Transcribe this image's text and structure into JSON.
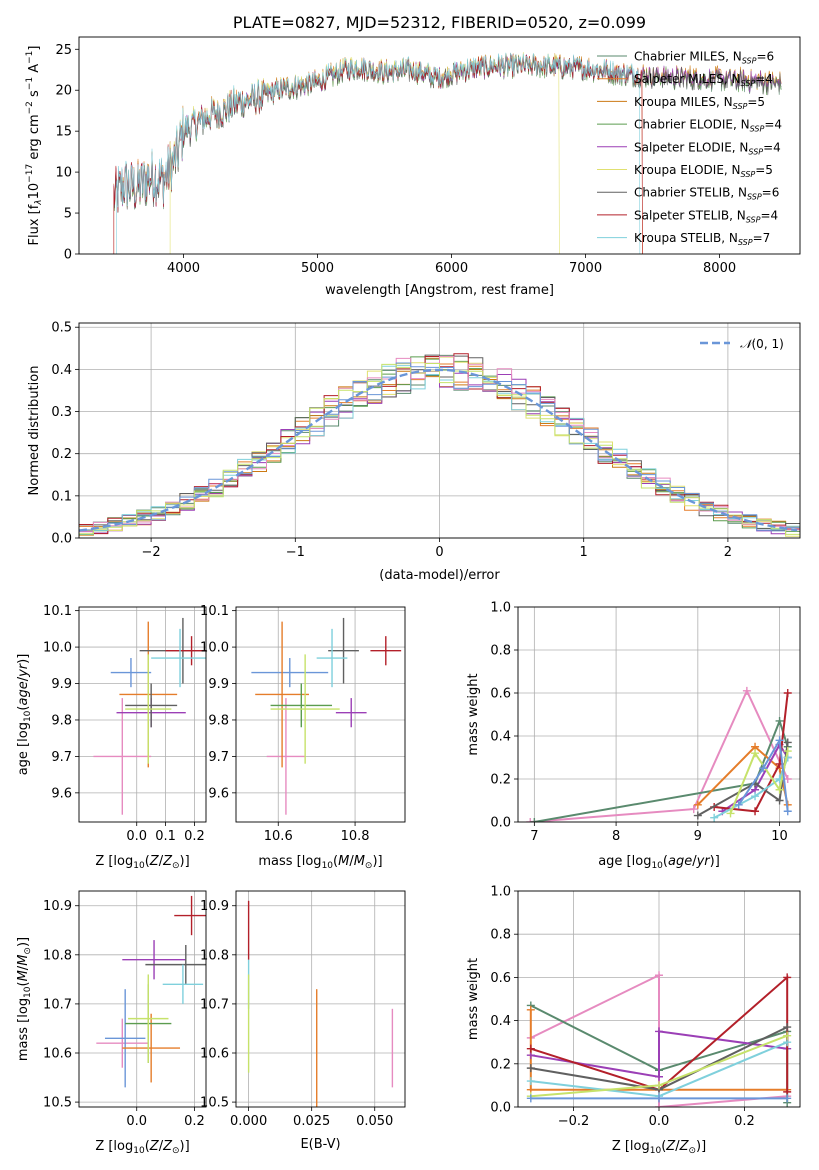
{
  "colors": {
    "c0": "#5a8a6e",
    "c1": "#e57d2a",
    "c2": "#cc7a14",
    "c3": "#5b9c4f",
    "c4": "#9b3fb6",
    "c5": "#e0e070",
    "c6": "#606060",
    "c7": "#b3202a",
    "c8": "#7fd0dc",
    "c9": "#e68bc0",
    "c10": "#6a96d8",
    "c11": "#c6e26a",
    "c12": "#d05a6a",
    "c13": "#6a6ac8"
  },
  "chart_data": [
    {
      "id": "spectrum",
      "type": "line",
      "title": "PLATE=0827, MJD=52312, FIBERID=0520, z=0.099",
      "xlabel": "wavelength [Angstrom, rest frame]",
      "ylabel": "Flux [fλ10⁻¹⁷ erg cm⁻² s⁻¹ A⁻¹]",
      "xlim": [
        3220,
        8600
      ],
      "ylim": [
        0,
        26.5
      ],
      "xticks": [
        4000,
        5000,
        6000,
        7000,
        8000
      ],
      "yticks": [
        0,
        5,
        10,
        15,
        20,
        25
      ],
      "grid": false,
      "legend_position": "top-right",
      "series": [
        {
          "name": "Chabrier MILES, N_SSP=6",
          "color_key": "c0"
        },
        {
          "name": "Salpeter MILES, N_SSP=4",
          "color_key": "c1"
        },
        {
          "name": "Kroupa MILES, N_SSP=5",
          "color_key": "c2"
        },
        {
          "name": "Chabrier ELODIE, N_SSP=4",
          "color_key": "c3"
        },
        {
          "name": "Salpeter ELODIE, N_SSP=4",
          "color_key": "c4"
        },
        {
          "name": "Kroupa ELODIE, N_SSP=5",
          "color_key": "c5"
        },
        {
          "name": "Chabrier STELIB, N_SSP=6",
          "color_key": "c6"
        },
        {
          "name": "Salpeter STELIB, N_SSP=4",
          "color_key": "c7"
        },
        {
          "name": "Kroupa STELIB, N_SSP=7",
          "color_key": "c8"
        }
      ],
      "continuum": [
        [
          3480,
          7.0
        ],
        [
          3560,
          8.5
        ],
        [
          3650,
          8.0
        ],
        [
          3750,
          9.5
        ],
        [
          3850,
          9.0
        ],
        [
          3950,
          12.0
        ],
        [
          4000,
          15.0
        ],
        [
          4100,
          16.0
        ],
        [
          4200,
          17.0
        ],
        [
          4300,
          17.5
        ],
        [
          4400,
          18.5
        ],
        [
          4500,
          18.8
        ],
        [
          4700,
          20.0
        ],
        [
          4860,
          20.5
        ],
        [
          5000,
          21.0
        ],
        [
          5200,
          22.5
        ],
        [
          5300,
          22.8
        ],
        [
          5500,
          22.2
        ],
        [
          5700,
          22.5
        ],
        [
          5900,
          21.5
        ],
        [
          6100,
          22.5
        ],
        [
          6300,
          23.0
        ],
        [
          6500,
          23.0
        ],
        [
          6700,
          23.0
        ],
        [
          6900,
          22.8
        ],
        [
          7100,
          22.5
        ],
        [
          7300,
          22.0
        ],
        [
          7500,
          21.8
        ],
        [
          7800,
          21.5
        ],
        [
          8100,
          21.3
        ],
        [
          8460,
          21.0
        ]
      ],
      "dropouts": [
        {
          "series": "Salpeter MILES, N_SSP=4",
          "low_end": 3480,
          "high_end": 7420
        },
        {
          "series": "Kroupa ELODIE, N_SSP=5",
          "low_end": 3900,
          "high_end": 6800
        },
        {
          "series": "Salpeter STELIB, N_SSP=4",
          "low_end": 3480,
          "high_end": 7420
        },
        {
          "series": "Kroupa STELIB, N_SSP=7",
          "low_end": 3500,
          "high_end": 7400
        }
      ]
    },
    {
      "id": "residuals",
      "type": "histogram",
      "xlabel": "(data-model)/error",
      "ylabel": "Normed distribution",
      "xlim": [
        -2.5,
        2.5
      ],
      "ylim": [
        0,
        0.51
      ],
      "xticks": [
        -2,
        -1,
        0,
        1,
        2
      ],
      "yticks": [
        0.0,
        0.1,
        0.2,
        0.3,
        0.4,
        0.5
      ],
      "grid": true,
      "legend_position": "top-right",
      "reference": {
        "name": "𝒩(0,1)",
        "mean": 0,
        "sigma": 1,
        "color_key": "c10",
        "style": "dashed"
      },
      "bin_width": 0.1
    },
    {
      "id": "age_vs_Z",
      "type": "scatter-errorbar",
      "xlabel": "Z [log₁₀(Z/Z⊙)]",
      "ylabel": "age  [log₁₀(age/yr)]",
      "xlim": [
        -0.2,
        0.24
      ],
      "ylim": [
        9.52,
        10.11
      ],
      "xticks": [
        0.0,
        0.1,
        0.2
      ],
      "yticks": [
        9.6,
        9.7,
        9.8,
        9.9,
        10.0,
        10.1
      ],
      "grid": true,
      "points": [
        {
          "x": -0.05,
          "y": 9.7,
          "xerr": 0.1,
          "yerr": 0.16,
          "color_key": "c9"
        },
        {
          "x": -0.02,
          "y": 9.93,
          "xerr": 0.07,
          "yerr": 0.04,
          "color_key": "c10"
        },
        {
          "x": 0.04,
          "y": 9.87,
          "xerr": 0.1,
          "yerr": 0.2,
          "color_key": "c1"
        },
        {
          "x": 0.05,
          "y": 9.82,
          "xerr": 0.12,
          "yerr": 0.04,
          "color_key": "c4"
        },
        {
          "x": 0.05,
          "y": 9.84,
          "xerr": 0.09,
          "yerr": 0.06,
          "color_key": "c6"
        },
        {
          "x": 0.04,
          "y": 9.83,
          "xerr": 0.08,
          "yerr": 0.15,
          "color_key": "c11"
        },
        {
          "x": 0.16,
          "y": 9.99,
          "xerr": 0.15,
          "yerr": 0.09,
          "color_key": "c6"
        },
        {
          "x": 0.19,
          "y": 9.99,
          "xerr": 0.09,
          "yerr": 0.04,
          "color_key": "c7"
        },
        {
          "x": 0.15,
          "y": 9.97,
          "xerr": 0.1,
          "yerr": 0.08,
          "color_key": "c8"
        }
      ]
    },
    {
      "id": "age_vs_mass",
      "type": "scatter-errorbar",
      "xlabel": "mass [log₁₀(M/M⊙)]",
      "ylabel": "",
      "xlim": [
        10.49,
        10.93
      ],
      "ylim": [
        9.52,
        10.11
      ],
      "xticks": [
        10.6,
        10.8
      ],
      "yticks": [
        9.6,
        9.7,
        9.8,
        9.9,
        10.0,
        10.1
      ],
      "grid": true,
      "points": [
        {
          "x": 10.62,
          "y": 9.7,
          "xerr": 0.05,
          "yerr": 0.16,
          "color_key": "c9"
        },
        {
          "x": 10.63,
          "y": 9.93,
          "xerr": 0.1,
          "yerr": 0.04,
          "color_key": "c10"
        },
        {
          "x": 10.61,
          "y": 9.87,
          "xerr": 0.07,
          "yerr": 0.2,
          "color_key": "c1"
        },
        {
          "x": 10.79,
          "y": 9.82,
          "xerr": 0.04,
          "yerr": 0.04,
          "color_key": "c4"
        },
        {
          "x": 10.66,
          "y": 9.84,
          "xerr": 0.08,
          "yerr": 0.06,
          "color_key": "c3"
        },
        {
          "x": 10.67,
          "y": 9.83,
          "xerr": 0.09,
          "yerr": 0.15,
          "color_key": "c11"
        },
        {
          "x": 10.77,
          "y": 9.99,
          "xerr": 0.04,
          "yerr": 0.09,
          "color_key": "c6"
        },
        {
          "x": 10.88,
          "y": 9.99,
          "xerr": 0.04,
          "yerr": 0.04,
          "color_key": "c7"
        },
        {
          "x": 10.74,
          "y": 9.97,
          "xerr": 0.04,
          "yerr": 0.08,
          "color_key": "c8"
        }
      ]
    },
    {
      "id": "weight_vs_age",
      "type": "line",
      "xlabel": "age  [log₁₀(age/yr)]",
      "ylabel": "mass weight",
      "xlim": [
        6.8,
        10.25
      ],
      "ylim": [
        0,
        1.0
      ],
      "xticks": [
        7,
        8,
        9,
        10
      ],
      "yticks": [
        0.0,
        0.2,
        0.4,
        0.6,
        0.8,
        1.0
      ],
      "grid": true,
      "series": [
        {
          "color_key": "c9",
          "points": [
            [
              6.95,
              0.0
            ],
            [
              8.95,
              0.06
            ],
            [
              9.6,
              0.61
            ],
            [
              10.1,
              0.2
            ]
          ]
        },
        {
          "color_key": "c0",
          "points": [
            [
              7.0,
              0.0
            ],
            [
              9.7,
              0.18
            ],
            [
              10.0,
              0.47
            ],
            [
              10.1,
              0.35
            ]
          ]
        },
        {
          "color_key": "c1",
          "points": [
            [
              9.0,
              0.08
            ],
            [
              9.7,
              0.35
            ],
            [
              10.0,
              0.25
            ],
            [
              10.1,
              0.08
            ]
          ]
        },
        {
          "color_key": "c4",
          "points": [
            [
              9.3,
              0.05
            ],
            [
              9.7,
              0.15
            ],
            [
              10.0,
              0.36
            ],
            [
              10.1,
              0.3
            ]
          ]
        },
        {
          "color_key": "c7",
          "points": [
            [
              9.2,
              0.07
            ],
            [
              9.7,
              0.05
            ],
            [
              10.0,
              0.27
            ],
            [
              10.1,
              0.6
            ]
          ]
        },
        {
          "color_key": "c6",
          "points": [
            [
              9.0,
              0.03
            ],
            [
              9.7,
              0.18
            ],
            [
              10.0,
              0.1
            ],
            [
              10.1,
              0.37
            ]
          ]
        },
        {
          "color_key": "c8",
          "points": [
            [
              9.2,
              0.02
            ],
            [
              9.7,
              0.12
            ],
            [
              10.0,
              0.2
            ],
            [
              10.1,
              0.3
            ]
          ]
        },
        {
          "color_key": "c11",
          "points": [
            [
              9.4,
              0.04
            ],
            [
              9.7,
              0.32
            ],
            [
              10.0,
              0.15
            ],
            [
              10.1,
              0.33
            ]
          ]
        },
        {
          "color_key": "c10",
          "points": [
            [
              9.5,
              0.08
            ],
            [
              9.8,
              0.25
            ],
            [
              10.0,
              0.38
            ],
            [
              10.1,
              0.05
            ]
          ]
        }
      ]
    },
    {
      "id": "mass_vs_Z",
      "type": "scatter-errorbar",
      "xlabel": "Z [log₁₀(Z/Z⊙)]",
      "ylabel": "mass [log₁₀(M/M⊙)]",
      "xlim": [
        -0.2,
        0.24
      ],
      "ylim": [
        10.49,
        10.93
      ],
      "xticks": [
        0.0,
        0.2
      ],
      "yticks": [
        10.5,
        10.6,
        10.7,
        10.8,
        10.9
      ],
      "grid": true,
      "points": [
        {
          "x": -0.05,
          "y": 10.62,
          "xerr": 0.09,
          "yerr": 0.05,
          "color_key": "c9"
        },
        {
          "x": -0.04,
          "y": 10.63,
          "xerr": 0.07,
          "yerr": 0.1,
          "color_key": "c10"
        },
        {
          "x": 0.05,
          "y": 10.61,
          "xerr": 0.1,
          "yerr": 0.07,
          "color_key": "c1"
        },
        {
          "x": 0.06,
          "y": 10.79,
          "xerr": 0.11,
          "yerr": 0.04,
          "color_key": "c4"
        },
        {
          "x": 0.04,
          "y": 10.66,
          "xerr": 0.08,
          "yerr": 0.08,
          "color_key": "c3"
        },
        {
          "x": 0.04,
          "y": 10.67,
          "xerr": 0.07,
          "yerr": 0.09,
          "color_key": "c11"
        },
        {
          "x": 0.17,
          "y": 10.78,
          "xerr": 0.14,
          "yerr": 0.04,
          "color_key": "c6"
        },
        {
          "x": 0.19,
          "y": 10.88,
          "xerr": 0.06,
          "yerr": 0.04,
          "color_key": "c7"
        },
        {
          "x": 0.16,
          "y": 10.74,
          "xerr": 0.07,
          "yerr": 0.04,
          "color_key": "c8"
        }
      ]
    },
    {
      "id": "mass_vs_ebv",
      "type": "scatter-errorbar",
      "xlabel": "E(B-V)",
      "ylabel": "",
      "xlim": [
        -0.005,
        0.062
      ],
      "ylim": [
        10.49,
        10.93
      ],
      "xticks": [
        0.0,
        0.025,
        0.05
      ],
      "yticks": [
        10.5,
        10.6,
        10.7,
        10.8,
        10.9
      ],
      "grid": true,
      "points": [
        {
          "x": 0.0,
          "y": 10.85,
          "xerr": 0,
          "yerr": 0.06,
          "color_key": "c7"
        },
        {
          "x": 0.0,
          "y": 10.74,
          "xerr": 0,
          "yerr": 0.05,
          "color_key": "c8"
        },
        {
          "x": 0.0,
          "y": 10.66,
          "xerr": 0,
          "yerr": 0.1,
          "color_key": "c11"
        },
        {
          "x": 0.027,
          "y": 10.61,
          "xerr": 0,
          "yerr": 0.12,
          "color_key": "c1"
        },
        {
          "x": 0.057,
          "y": 10.61,
          "xerr": 0,
          "yerr": 0.08,
          "color_key": "c9"
        }
      ]
    },
    {
      "id": "weight_vs_Z",
      "type": "line",
      "xlabel": "Z [log₁₀(Z/Z⊙)]",
      "ylabel": "mass weight",
      "xlim": [
        -0.33,
        0.33
      ],
      "ylim": [
        0,
        1.0
      ],
      "xticks": [
        -0.2,
        0.0,
        0.2
      ],
      "yticks": [
        0.0,
        0.2,
        0.4,
        0.6,
        0.8,
        1.0
      ],
      "grid": true,
      "series": [
        {
          "color_key": "c9",
          "points": [
            [
              -0.3,
              0.32
            ],
            [
              0.0,
              0.61
            ],
            [
              0.0,
              0.0
            ],
            [
              0.3,
              0.05
            ]
          ]
        },
        {
          "color_key": "c0",
          "points": [
            [
              -0.3,
              0.47
            ],
            [
              0.0,
              0.17
            ],
            [
              0.3,
              0.35
            ],
            [
              0.3,
              0.02
            ]
          ]
        },
        {
          "color_key": "c1",
          "points": [
            [
              -0.3,
              0.45
            ],
            [
              -0.3,
              0.08
            ],
            [
              0.3,
              0.08
            ]
          ]
        },
        {
          "color_key": "c4",
          "points": [
            [
              -0.3,
              0.24
            ],
            [
              0.0,
              0.14
            ],
            [
              0.0,
              0.35
            ],
            [
              0.3,
              0.27
            ]
          ]
        },
        {
          "color_key": "c7",
          "points": [
            [
              -0.3,
              0.27
            ],
            [
              0.0,
              0.08
            ],
            [
              0.3,
              0.6
            ],
            [
              0.3,
              0.07
            ]
          ]
        },
        {
          "color_key": "c6",
          "points": [
            [
              -0.3,
              0.18
            ],
            [
              0.0,
              0.08
            ],
            [
              0.3,
              0.37
            ]
          ]
        },
        {
          "color_key": "c8",
          "points": [
            [
              -0.3,
              0.12
            ],
            [
              0.0,
              0.05
            ],
            [
              0.3,
              0.3
            ]
          ]
        },
        {
          "color_key": "c11",
          "points": [
            [
              -0.3,
              0.05
            ],
            [
              0.0,
              0.1
            ],
            [
              0.3,
              0.33
            ]
          ]
        },
        {
          "color_key": "c10",
          "points": [
            [
              -0.3,
              0.04
            ],
            [
              0.0,
              0.04
            ],
            [
              0.3,
              0.04
            ]
          ]
        }
      ]
    }
  ]
}
